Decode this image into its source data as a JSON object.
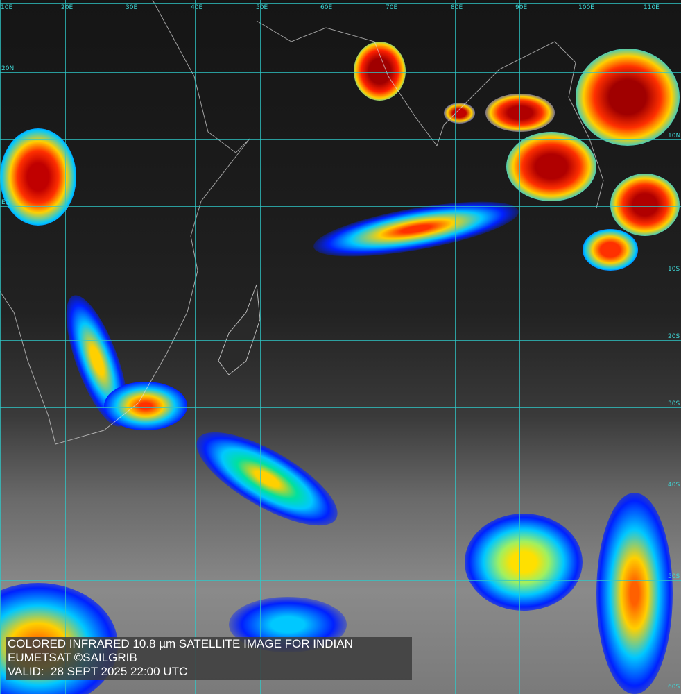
{
  "title": "COLORED INFRARED 10.8 µm SATELLITE IMAGE FOR INDIAN",
  "credit": "EUMETSAT ©SAILGRIB",
  "valid_label": "VALID:",
  "valid_time": "28 SEPT 2025 22:00 UTC",
  "grid": {
    "longitudes": [
      "10E",
      "20E",
      "30E",
      "40E",
      "50E",
      "60E",
      "70E",
      "80E",
      "90E",
      "100E",
      "110E"
    ],
    "latitudes": [
      "20N",
      "10N",
      "EQ",
      "10S",
      "20S",
      "30S",
      "40S",
      "50S",
      "60S"
    ]
  },
  "colors": {
    "grid": "#2fc8c8",
    "cold_top": "#d40000",
    "mid": "#ffd000",
    "warm": "#0030ff"
  }
}
